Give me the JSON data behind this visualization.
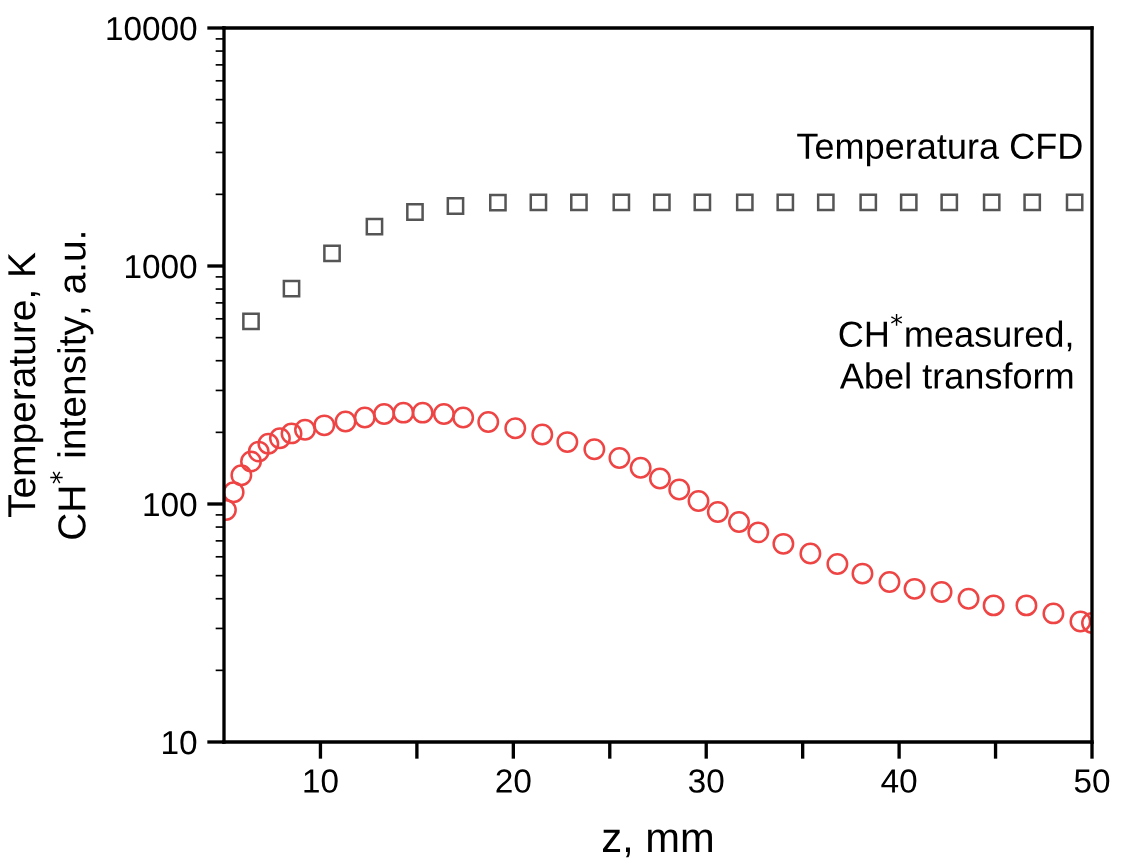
{
  "chart_data": {
    "type": "scatter",
    "xlabel": "z, mm",
    "ylabel": "Temperature, K\nCH$^{*}$ intensity, a.u.",
    "log": "y",
    "xlim": [
      5,
      50
    ],
    "ylim": [
      10,
      10000
    ],
    "xticks": [
      10,
      {
        "value": 15,
        "label": null
      },
      20,
      {
        "value": 25,
        "label": null
      },
      30,
      {
        "value": 35,
        "label": null
      },
      40,
      {
        "value": 45,
        "label": null
      },
      50
    ],
    "yticks": [
      10,
      100,
      1000,
      10000
    ],
    "grid": false,
    "annotations": [
      "Temperatura CFD",
      "CH$^{*}$measured,\nAbel transform"
    ],
    "series": [
      {
        "color": "#555555",
        "marker": "square",
        "x": [
          6.4,
          8.5,
          10.6,
          12.8,
          14.9,
          17.0,
          19.2,
          21.3,
          23.4,
          25.6,
          27.7,
          29.8,
          32.0,
          34.1,
          36.2,
          38.4,
          40.5,
          42.6,
          44.8,
          46.9,
          49.1
        ],
        "values": [
          585,
          804,
          1130,
          1465,
          1686,
          1787,
          1846,
          1850,
          1850,
          1850,
          1850,
          1850,
          1850,
          1850,
          1850,
          1850,
          1850,
          1850,
          1850,
          1850,
          1850
        ]
      },
      {
        "color": "#ee4444",
        "marker": "circle",
        "x": [
          5.1,
          5.5,
          5.9,
          6.4,
          6.8,
          7.3,
          7.9,
          8.5,
          9.2,
          10.2,
          11.3,
          12.3,
          13.3,
          14.3,
          15.3,
          16.4,
          17.4,
          18.7,
          20.1,
          21.5,
          22.8,
          24.2,
          25.5,
          26.6,
          27.6,
          28.6,
          29.6,
          30.6,
          31.7,
          32.7,
          34.0,
          35.4,
          36.8,
          38.1,
          39.5,
          40.8,
          42.2,
          43.6,
          44.9,
          46.6,
          48.0,
          49.4,
          50.0
        ],
        "values": [
          94.4,
          112,
          132,
          151,
          166,
          179,
          189,
          198,
          205,
          214,
          222,
          231,
          239,
          242,
          242,
          239,
          231,
          221,
          208,
          196,
          182,
          170,
          156,
          142,
          128,
          115,
          103,
          92.5,
          84,
          76,
          68,
          62,
          56,
          51,
          47,
          44,
          42.7,
          40,
          37.5,
          37.5,
          34.7,
          32.1,
          31.6
        ]
      }
    ]
  }
}
